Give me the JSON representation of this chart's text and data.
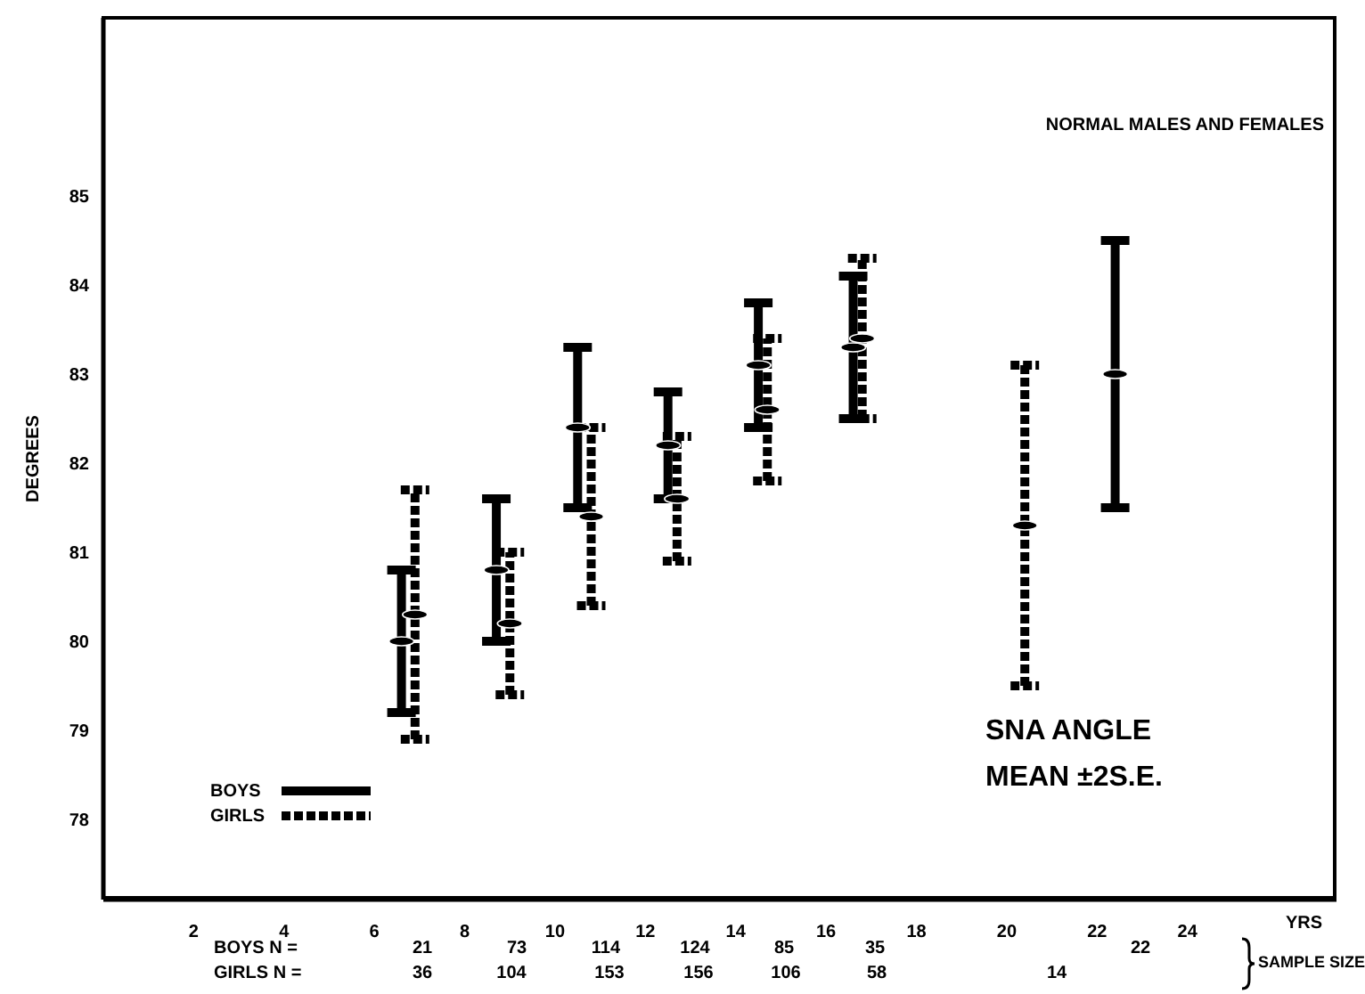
{
  "chart_data": {
    "type": "scatter",
    "xlabel": "YRS",
    "ylabel": "DEGREES",
    "xlim": [
      0,
      27.3
    ],
    "xticks": [
      2,
      4,
      6,
      8,
      10,
      12,
      14,
      16,
      18,
      20,
      22,
      24
    ],
    "ylim": [
      77.1,
      87
    ],
    "yticks": [
      78,
      79,
      80,
      81,
      82,
      83,
      84,
      85
    ],
    "grid": false,
    "legend": "bottom left",
    "series": [
      {
        "name": "BOYS",
        "color": "#000000",
        "line_style": "solid",
        "x": [
          6.6,
          8.7,
          10.5,
          12.5,
          14.5,
          16.6,
          22.4
        ],
        "values": [
          80.0,
          80.8,
          82.4,
          82.2,
          83.1,
          83.3,
          83.0
        ],
        "errors": [
          0.8,
          0.8,
          0.9,
          0.6,
          0.7,
          0.8,
          1.5
        ]
      },
      {
        "name": "GIRLS",
        "color": "#000000",
        "line_style": "dashed",
        "x": [
          6.9,
          9.0,
          10.8,
          12.7,
          14.7,
          16.8,
          20.4
        ],
        "values": [
          80.3,
          80.2,
          81.4,
          81.6,
          82.6,
          83.4,
          81.3
        ],
        "errors": [
          1.4,
          0.8,
          1.0,
          0.7,
          0.8,
          0.9,
          1.8
        ]
      }
    ],
    "annotations": [
      "NORMAL MALES AND FEMALES",
      "SNA ANGLE",
      "MEAN ±2S.E.",
      "BOYS N =",
      "GIRLS N =",
      "SAMPLE SIZE",
      "21",
      "73",
      "114",
      "124",
      "85",
      "35",
      "22",
      "36",
      "104",
      "153",
      "156",
      "106",
      "58",
      "14"
    ]
  }
}
